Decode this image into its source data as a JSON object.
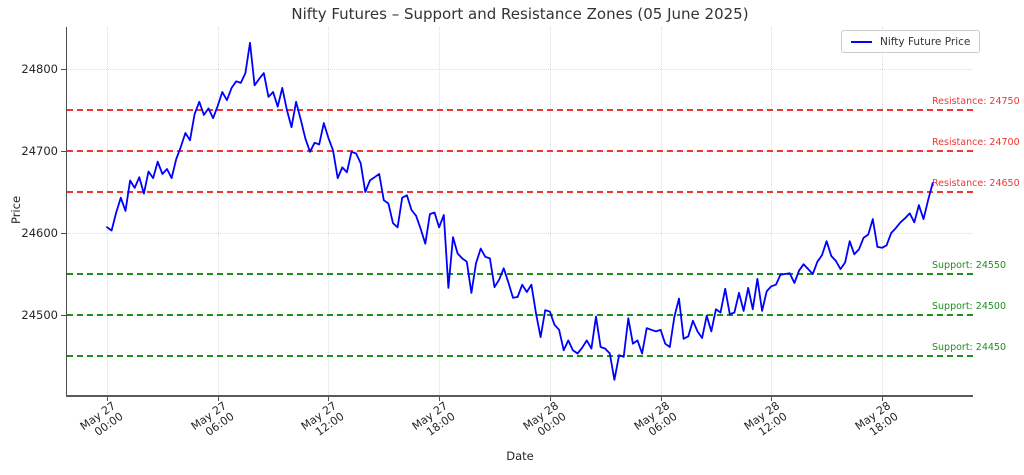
{
  "title": "Nifty Futures – Support and Resistance Zones (05 June 2025)",
  "legend": {
    "label": "Nifty Future Price",
    "line_color": "#0000ff"
  },
  "axes": {
    "x_label": "Date",
    "y_label": "Price",
    "y_ticks": [
      "24500",
      "24600",
      "24700",
      "24800"
    ],
    "x_ticks": [
      {
        "line1": "May 27",
        "line2": "00:00"
      },
      {
        "line1": "May 27",
        "line2": "06:00"
      },
      {
        "line1": "May 27",
        "line2": "12:00"
      },
      {
        "line1": "May 27",
        "line2": "18:00"
      },
      {
        "line1": "May 28",
        "line2": "00:00"
      },
      {
        "line1": "May 28",
        "line2": "06:00"
      },
      {
        "line1": "May 28",
        "line2": "12:00"
      },
      {
        "line1": "May 28",
        "line2": "18:00"
      }
    ]
  },
  "levels": {
    "resistance_color": "#f03535",
    "support_color": "#1d8f1d",
    "resistance": [
      {
        "label": "Resistance: 24750",
        "value": 24750
      },
      {
        "label": "Resistance: 24700",
        "value": 24700
      },
      {
        "label": "Resistance: 24650",
        "value": 24650
      }
    ],
    "support": [
      {
        "label": "Support: 24550",
        "value": 24550
      },
      {
        "label": "Support: 24500",
        "value": 24500
      },
      {
        "label": "Support: 24450",
        "value": 24450
      }
    ]
  },
  "chart_data": {
    "type": "line",
    "title": "Nifty Futures – Support and Resistance Zones (05 June 2025)",
    "xlabel": "Date",
    "ylabel": "Price",
    "x_start": "2025-05-27 00:00",
    "x_interval_minutes": 15,
    "x_tick_labels": [
      "May 27 00:00",
      "May 27 06:00",
      "May 27 12:00",
      "May 27 18:00",
      "May 28 00:00",
      "May 28 06:00",
      "May 28 12:00",
      "May 28 18:00"
    ],
    "ylim": [
      24402,
      24851
    ],
    "grid": true,
    "legend_position": "upper right",
    "resistance_levels": [
      24750,
      24700,
      24650
    ],
    "support_levels": [
      24550,
      24500,
      24450
    ],
    "series": [
      {
        "name": "Nifty Future Price",
        "color": "#0000ff",
        "values": [
          24607,
          24603,
          24625,
          24643,
          24627,
          24664,
          24655,
          24668,
          24648,
          24675,
          24667,
          24687,
          24672,
          24678,
          24667,
          24690,
          24705,
          24722,
          24713,
          24745,
          24760,
          24744,
          24752,
          24740,
          24755,
          24772,
          24762,
          24777,
          24785,
          24783,
          24795,
          24832,
          24780,
          24788,
          24795,
          24766,
          24772,
          24754,
          24777,
          24750,
          24729,
          24760,
          24738,
          24715,
          24699,
          24710,
          24708,
          24734,
          24716,
          24701,
          24667,
          24680,
          24674,
          24699,
          24697,
          24685,
          24650,
          24664,
          24668,
          24672,
          24640,
          24636,
          24612,
          24607,
          24643,
          24646,
          24628,
          24621,
          24605,
          24587,
          24623,
          24625,
          24607,
          24622,
          24533,
          24595,
          24575,
          24569,
          24565,
          24527,
          24563,
          24581,
          24571,
          24569,
          24534,
          24543,
          24557,
          24540,
          24521,
          24522,
          24537,
          24528,
          24537,
          24502,
          24473,
          24506,
          24504,
          24488,
          24482,
          24457,
          24469,
          24457,
          24453,
          24460,
          24469,
          24459,
          24498,
          24461,
          24459,
          24453,
          24421,
          24451,
          24449,
          24496,
          24465,
          24469,
          24453,
          24484,
          24482,
          24480,
          24482,
          24465,
          24461,
          24498,
          24520,
          24471,
          24474,
          24493,
          24480,
          24472,
          24499,
          24480,
          24507,
          24503,
          24532,
          24501,
          24503,
          24527,
          24505,
          24533,
          24507,
          24544,
          24505,
          24529,
          24535,
          24537,
          24549,
          24550,
          24551,
          24539,
          24554,
          24562,
          24556,
          24550,
          24565,
          24573,
          24590,
          24572,
          24566,
          24556,
          24564,
          24590,
          24574,
          24580,
          24594,
          24598,
          24617,
          24583,
          24582,
          24585,
          24600,
          24606,
          24613,
          24618,
          24624,
          24613,
          24634,
          24617,
          24640,
          24661
        ]
      }
    ]
  }
}
